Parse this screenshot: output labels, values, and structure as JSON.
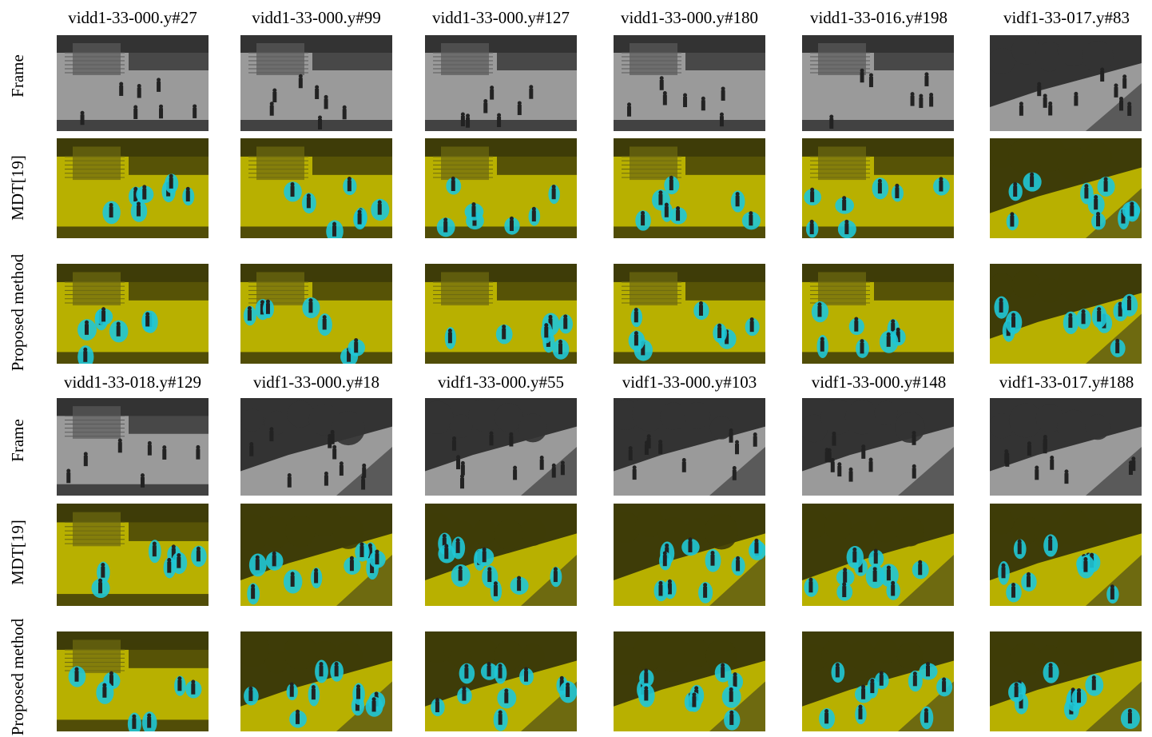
{
  "column_titles": {
    "top": [
      "vidd1-33-000.y#27",
      "vidd1-33-000.y#99",
      "vidd1-33-000.y#127",
      "vidd1-33-000.y#180",
      "vidd1-33-016.y#198",
      "vidf1-33-017.y#83"
    ],
    "bottom": [
      "vidd1-33-018.y#129",
      "vidf1-33-000.y#18",
      "vidf1-33-000.y#55",
      "vidf1-33-000.y#103",
      "vidf1-33-000.y#148",
      "vidf1-33-017.y#188"
    ]
  },
  "row_labels": {
    "frame": "Frame",
    "mdt": "MDT[19]",
    "proposed": "Proposed method"
  },
  "colors": {
    "frame_gray": "#9a9a9a",
    "mask_yellow": "#b8b000",
    "detection_cyan": "#1fc6d6"
  },
  "image_semantics": {
    "scene_a": "stairs-courtyard-scene",
    "scene_b": "tree-walkway-scene",
    "frame": "grayscale-frame",
    "mdt": "mdt-anomaly-map",
    "proposed": "proposed-anomaly-map"
  }
}
